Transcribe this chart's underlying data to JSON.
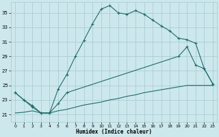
{
  "xlabel": "Humidex (Indice chaleur)",
  "bg_color": "#cce8ec",
  "grid_color": "#aacdd4",
  "line_color": "#1e6b6b",
  "xlim": [
    -0.5,
    23.5
  ],
  "ylim": [
    20.0,
    36.5
  ],
  "xticks": [
    0,
    1,
    2,
    3,
    4,
    5,
    6,
    7,
    8,
    9,
    10,
    11,
    12,
    13,
    14,
    15,
    16,
    17,
    18,
    19,
    20,
    21,
    22,
    23
  ],
  "yticks": [
    21,
    23,
    25,
    27,
    29,
    31,
    33,
    35
  ],
  "line1_x": [
    0,
    1,
    2,
    3,
    4,
    5,
    6,
    7,
    8,
    9,
    10,
    11,
    12,
    13,
    14,
    15,
    16,
    17,
    18,
    19,
    20,
    21,
    22,
    23
  ],
  "line1_y": [
    24.0,
    23.0,
    22.2,
    21.2,
    21.2,
    24.5,
    26.5,
    29.0,
    31.2,
    33.5,
    35.5,
    36.0,
    35.0,
    34.8,
    35.3,
    34.8,
    34.0,
    33.2,
    32.5,
    31.5,
    31.3,
    30.8,
    27.3,
    25.2
  ],
  "line2_x": [
    0,
    1,
    2,
    3,
    4,
    5,
    6,
    19,
    20,
    21,
    22,
    23
  ],
  "line2_y": [
    24.0,
    23.0,
    22.0,
    21.2,
    21.2,
    22.5,
    24.0,
    29.0,
    30.3,
    27.8,
    27.3,
    25.2
  ],
  "line3_x": [
    0,
    1,
    2,
    3,
    4,
    5,
    6,
    7,
    8,
    9,
    10,
    11,
    12,
    13,
    14,
    15,
    16,
    17,
    18,
    19,
    20,
    21,
    22,
    23
  ],
  "line3_y": [
    21.2,
    21.3,
    21.5,
    21.2,
    21.2,
    21.5,
    21.7,
    22.0,
    22.3,
    22.5,
    22.7,
    23.0,
    23.2,
    23.5,
    23.7,
    24.0,
    24.2,
    24.4,
    24.6,
    24.8,
    25.0,
    25.0,
    25.0,
    25.0
  ]
}
